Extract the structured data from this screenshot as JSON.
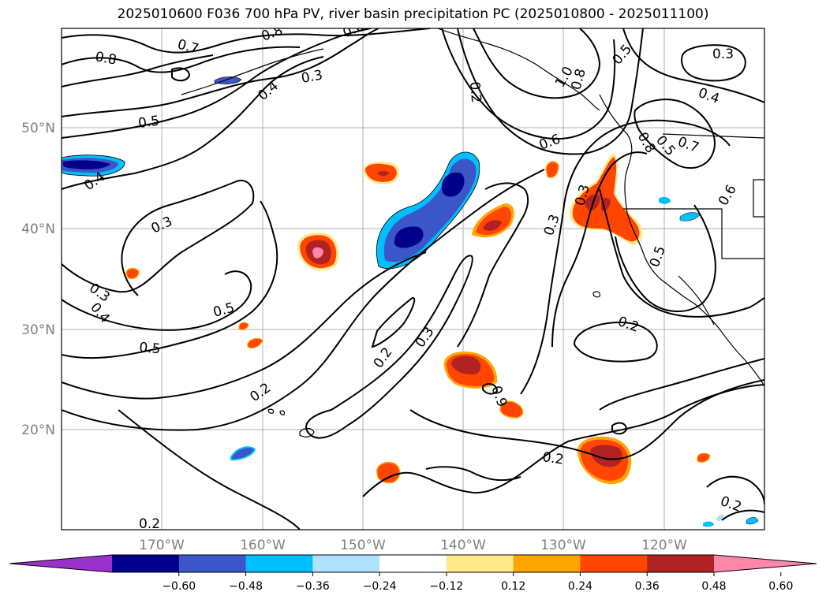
{
  "title": "2025010600 F036 700 hPa PV, river basin precipitation PC (2025010800 - 2025011100)",
  "map": {
    "lat_labels": [
      "50°N",
      "40°N",
      "30°N",
      "20°N"
    ],
    "lon_labels": [
      "170°W",
      "160°W",
      "150°W",
      "140°W",
      "130°W",
      "120°W"
    ],
    "grid": true
  },
  "contour_labels": [
    "0.8",
    "0.7",
    "0.8",
    "0.6",
    "0.3",
    "0.4",
    "0.3",
    "0.5",
    "0.4",
    "0.3",
    "0.4",
    "0.5",
    "0.5",
    "0.5",
    "0.2",
    "0.2",
    "0.3",
    "0.2",
    "0.3",
    "0.2",
    "0.2",
    "0.6",
    "1.0",
    "0.8",
    "0.5",
    "0.4",
    "0.3",
    "0.6",
    "0.3",
    "0.5",
    "0.2",
    "0.2",
    "0.8",
    "0.7",
    "0.9"
  ],
  "colorbar": {
    "ticks": [
      "−0.60",
      "−0.48",
      "−0.36",
      "−0.24",
      "−0.12",
      "0.12",
      "0.24",
      "0.36",
      "0.48",
      "0.60"
    ],
    "colors": [
      "#9932cc",
      "#00008b",
      "#3a56c8",
      "#00bfff",
      "#b0e2ff",
      "#ffffff",
      "#ffe98a",
      "#ffa500",
      "#ff4500",
      "#b22222",
      "#ff88aa"
    ]
  },
  "legend_colors": {
    "dark_blue": "#00008b",
    "blue": "#3a56c8",
    "cyan": "#00bfff",
    "light_blue": "#b0e2ff",
    "yellow": "#ffe98a",
    "orange": "#ffa500",
    "red_orange": "#ff4500",
    "dark_red": "#b22222",
    "pink": "#ff88aa"
  }
}
